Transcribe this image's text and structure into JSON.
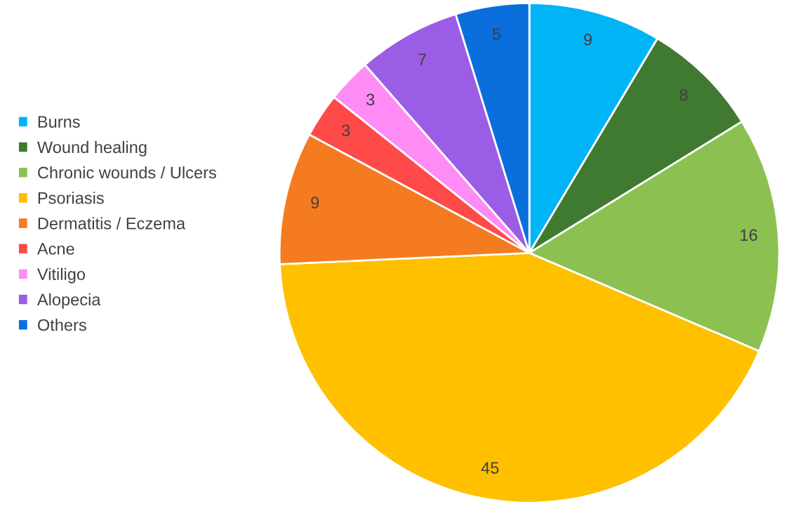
{
  "chart_data": {
    "type": "pie",
    "categories": [
      "Burns",
      "Wound healing",
      "Chronic wounds / Ulcers",
      "Psoriasis",
      "Dermatitis / Eczema",
      "Acne",
      "Vitiligo",
      "Alopecia",
      "Others"
    ],
    "values": [
      9,
      8,
      16,
      45,
      9,
      3,
      3,
      7,
      5
    ],
    "colors": [
      "#00b4f5",
      "#3f7a30",
      "#8cc152",
      "#ffc000",
      "#f47b20",
      "#ff4a4a",
      "#ff8cf5",
      "#9b5de5",
      "#0a6fdc"
    ],
    "data_labels": true,
    "legend": "left"
  }
}
